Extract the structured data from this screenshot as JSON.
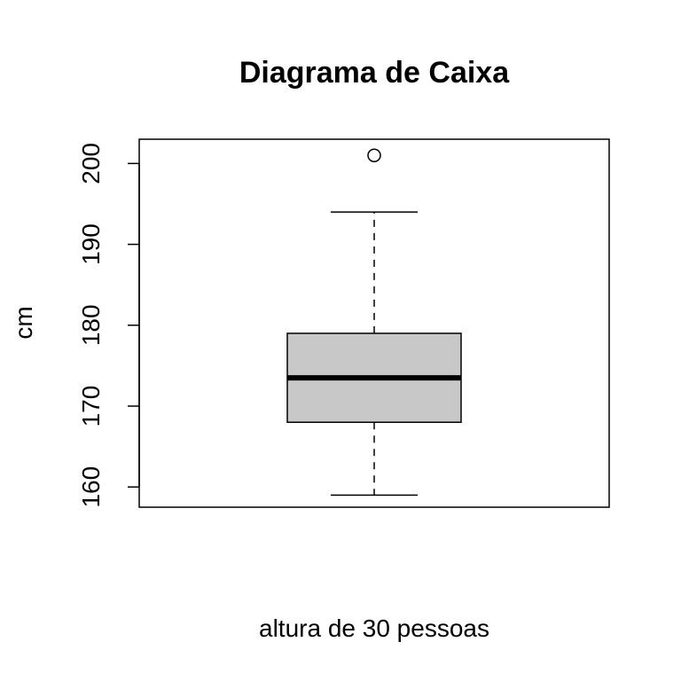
{
  "chart_data": {
    "type": "boxplot",
    "title": "Diagrama de Caixa",
    "xlabel": "altura de 30 pessoas",
    "ylabel": "cm",
    "ylim": [
      157.5,
      203
    ],
    "yticks": [
      "160",
      "170",
      "180",
      "190",
      "200"
    ],
    "box": {
      "whisker_low": 159,
      "q1": 168,
      "median": 173.5,
      "q3": 179,
      "whisker_high": 194,
      "outliers": [
        201
      ]
    },
    "colors": {
      "box_fill": "#c8c8c8",
      "line": "#000000"
    }
  }
}
